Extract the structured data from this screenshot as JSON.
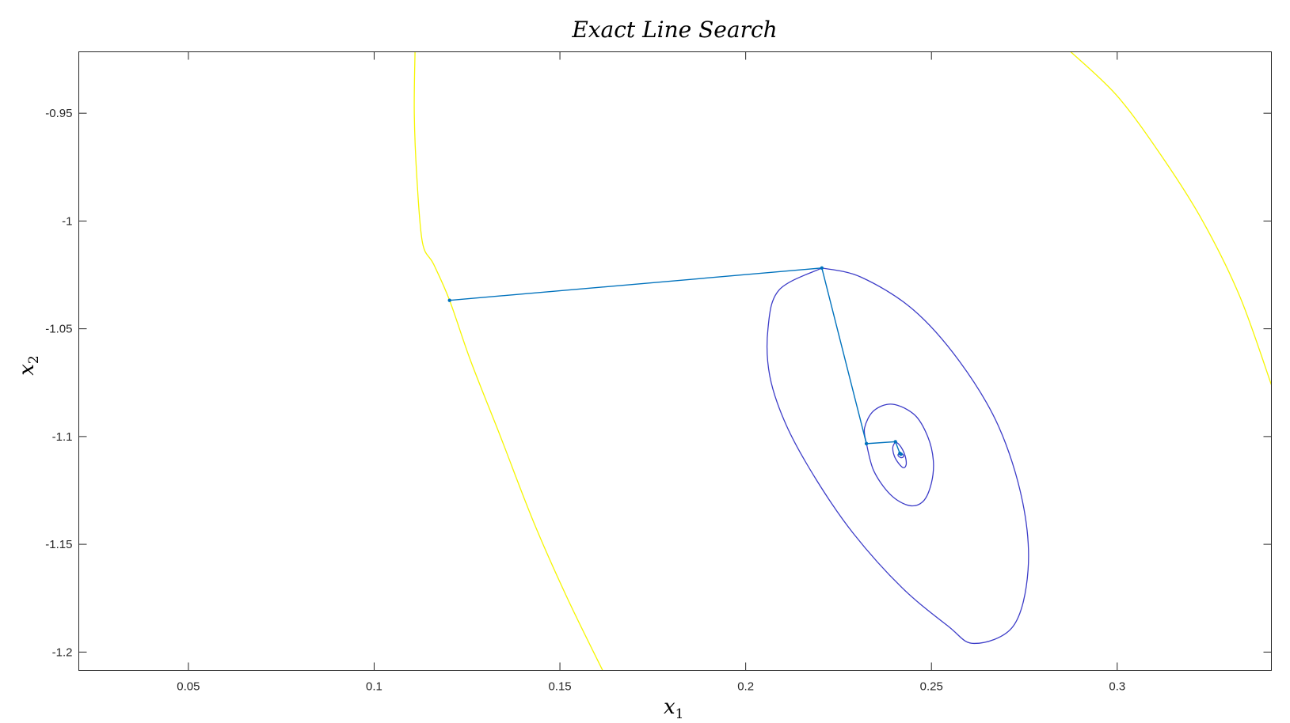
{
  "chart_data": {
    "type": "line",
    "title": "Exact Line Search",
    "xlabel": "x",
    "xlabel_sub": "1",
    "ylabel": "x",
    "ylabel_sub": "2",
    "xlim": [
      0.0205,
      0.3415
    ],
    "ylim": [
      -1.2085,
      -0.9215
    ],
    "grid": false,
    "x_ticks": [
      {
        "value": 0.05,
        "label": "0.05"
      },
      {
        "value": 0.1,
        "label": "0.1"
      },
      {
        "value": 0.15,
        "label": "0.15"
      },
      {
        "value": 0.2,
        "label": "0.2"
      },
      {
        "value": 0.25,
        "label": "0.25"
      },
      {
        "value": 0.3,
        "label": "0.3"
      }
    ],
    "y_ticks": [
      {
        "value": -0.95,
        "label": "-0.95"
      },
      {
        "value": -1.0,
        "label": "-1"
      },
      {
        "value": -1.05,
        "label": "-1.05"
      },
      {
        "value": -1.1,
        "label": "-1.1"
      },
      {
        "value": -1.15,
        "label": "-1.15"
      },
      {
        "value": -1.2,
        "label": "-1.2"
      }
    ],
    "colors": {
      "path": "#0072bd",
      "contour_inner": "#3d3dc8",
      "contour_outer": "#f5f500"
    },
    "series": [
      {
        "role": "iterate-path",
        "color": "#0072bd",
        "marker": "dot",
        "x": [
          0.1203,
          0.2205,
          0.2325,
          0.2403,
          0.2415,
          0.2418
        ],
        "y": [
          -1.0368,
          -1.0218,
          -1.1033,
          -1.1024,
          -1.1078,
          -1.1082
        ]
      },
      {
        "role": "contour",
        "color": "#3d3dc8",
        "x": [
          0.2205,
          0.209,
          0.206,
          0.2065,
          0.211,
          0.219,
          0.229,
          0.242,
          0.2545,
          0.2615,
          0.272,
          0.276,
          0.2745,
          0.268,
          0.2575,
          0.245,
          0.231,
          0.2205
        ],
        "y": [
          -1.0218,
          -1.032,
          -1.05,
          -1.072,
          -1.095,
          -1.12,
          -1.145,
          -1.17,
          -1.188,
          -1.196,
          -1.188,
          -1.162,
          -1.13,
          -1.095,
          -1.065,
          -1.041,
          -1.026,
          -1.0218
        ]
      },
      {
        "role": "contour",
        "color": "#3d3dc8",
        "x": [
          0.2325,
          0.232,
          0.2345,
          0.2395,
          0.2455,
          0.249,
          0.2505,
          0.25,
          0.2478,
          0.244,
          0.239,
          0.2345,
          0.2325
        ],
        "y": [
          -1.1033,
          -1.096,
          -1.088,
          -1.085,
          -1.09,
          -1.1,
          -1.111,
          -1.1215,
          -1.13,
          -1.132,
          -1.127,
          -1.116,
          -1.1033
        ]
      },
      {
        "role": "contour",
        "color": "#3d3dc8",
        "x": [
          0.2403,
          0.2396,
          0.24,
          0.2412,
          0.2425,
          0.2432,
          0.243,
          0.2422,
          0.2412,
          0.2403
        ],
        "y": [
          -1.1024,
          -1.105,
          -1.109,
          -1.1125,
          -1.1145,
          -1.113,
          -1.1095,
          -1.106,
          -1.1035,
          -1.1024
        ]
      },
      {
        "role": "contour",
        "color": "#3d3dc8",
        "x": [
          0.2415,
          0.241,
          0.2412,
          0.2418,
          0.2424,
          0.2425,
          0.2421,
          0.2415
        ],
        "y": [
          -1.1078,
          -1.1084,
          -1.1092,
          -1.1098,
          -1.1095,
          -1.1087,
          -1.108,
          -1.1078
        ]
      },
      {
        "role": "contour",
        "color": "#f5f500",
        "x": [
          0.111,
          0.1108,
          0.1115,
          0.113,
          0.116,
          0.1203,
          0.126,
          0.134,
          0.143,
          0.152,
          0.1615
        ],
        "y": [
          -0.9215,
          -0.95,
          -0.98,
          -1.01,
          -1.02,
          -1.0368,
          -1.065,
          -1.1,
          -1.14,
          -1.175,
          -1.2085
        ]
      },
      {
        "role": "contour",
        "color": "#f5f500",
        "x": [
          0.2875,
          0.3,
          0.312,
          0.323,
          0.333,
          0.3415
        ],
        "y": [
          -0.9215,
          -0.942,
          -0.97,
          -1.0,
          -1.035,
          -1.076
        ]
      }
    ]
  }
}
